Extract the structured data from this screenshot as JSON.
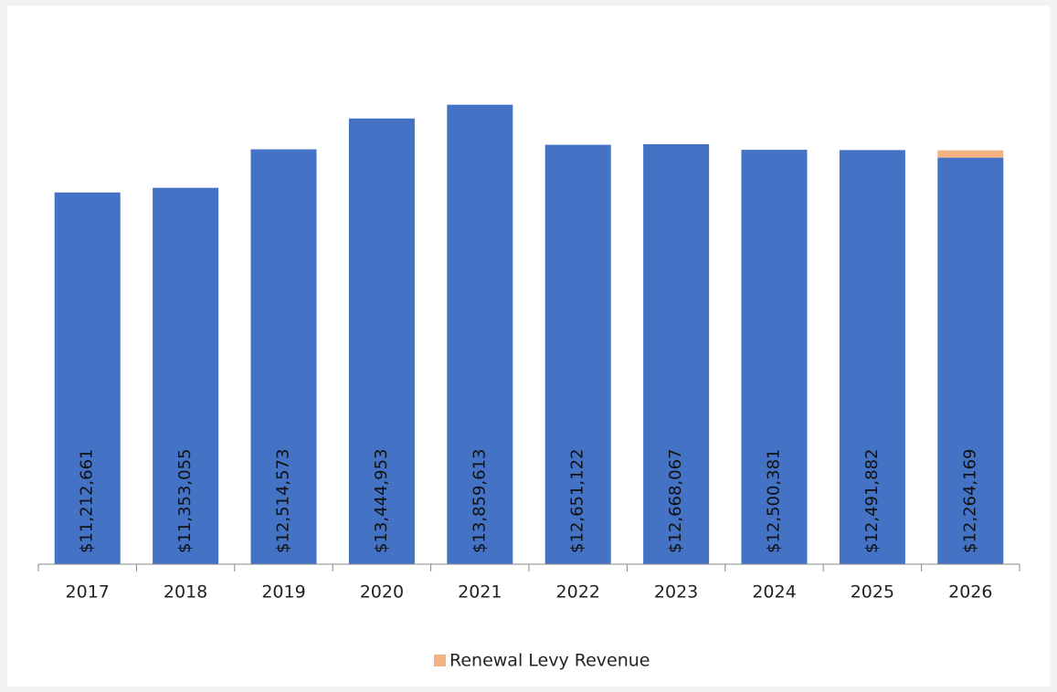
{
  "chart_data": {
    "type": "stacked_bar",
    "categories": [
      "2017",
      "2018",
      "2019",
      "2020",
      "2021",
      "2022",
      "2023",
      "2024",
      "2025",
      "2026"
    ],
    "series": [
      {
        "color": "#4472c4",
        "values": [
          11212661,
          11353055,
          12514573,
          13444953,
          13859613,
          12651122,
          12668067,
          12500381,
          12491882,
          12264169
        ],
        "value_labels": [
          "$11,212,661",
          "$11,353,055",
          "$12,514,573",
          "$13,444,953",
          "$13,859,613",
          "$12,651,122",
          "$12,668,067",
          "$12,500,381",
          "$12,491,882",
          "$12,264,169"
        ]
      },
      {
        "name": "Renewal Levy Revenue",
        "color": "#f4b183",
        "values": [
          null,
          null,
          null,
          null,
          null,
          null,
          null,
          null,
          null,
          220000
        ]
      }
    ],
    "ylim": [
      0,
      16000000
    ],
    "legend": "bottom"
  }
}
